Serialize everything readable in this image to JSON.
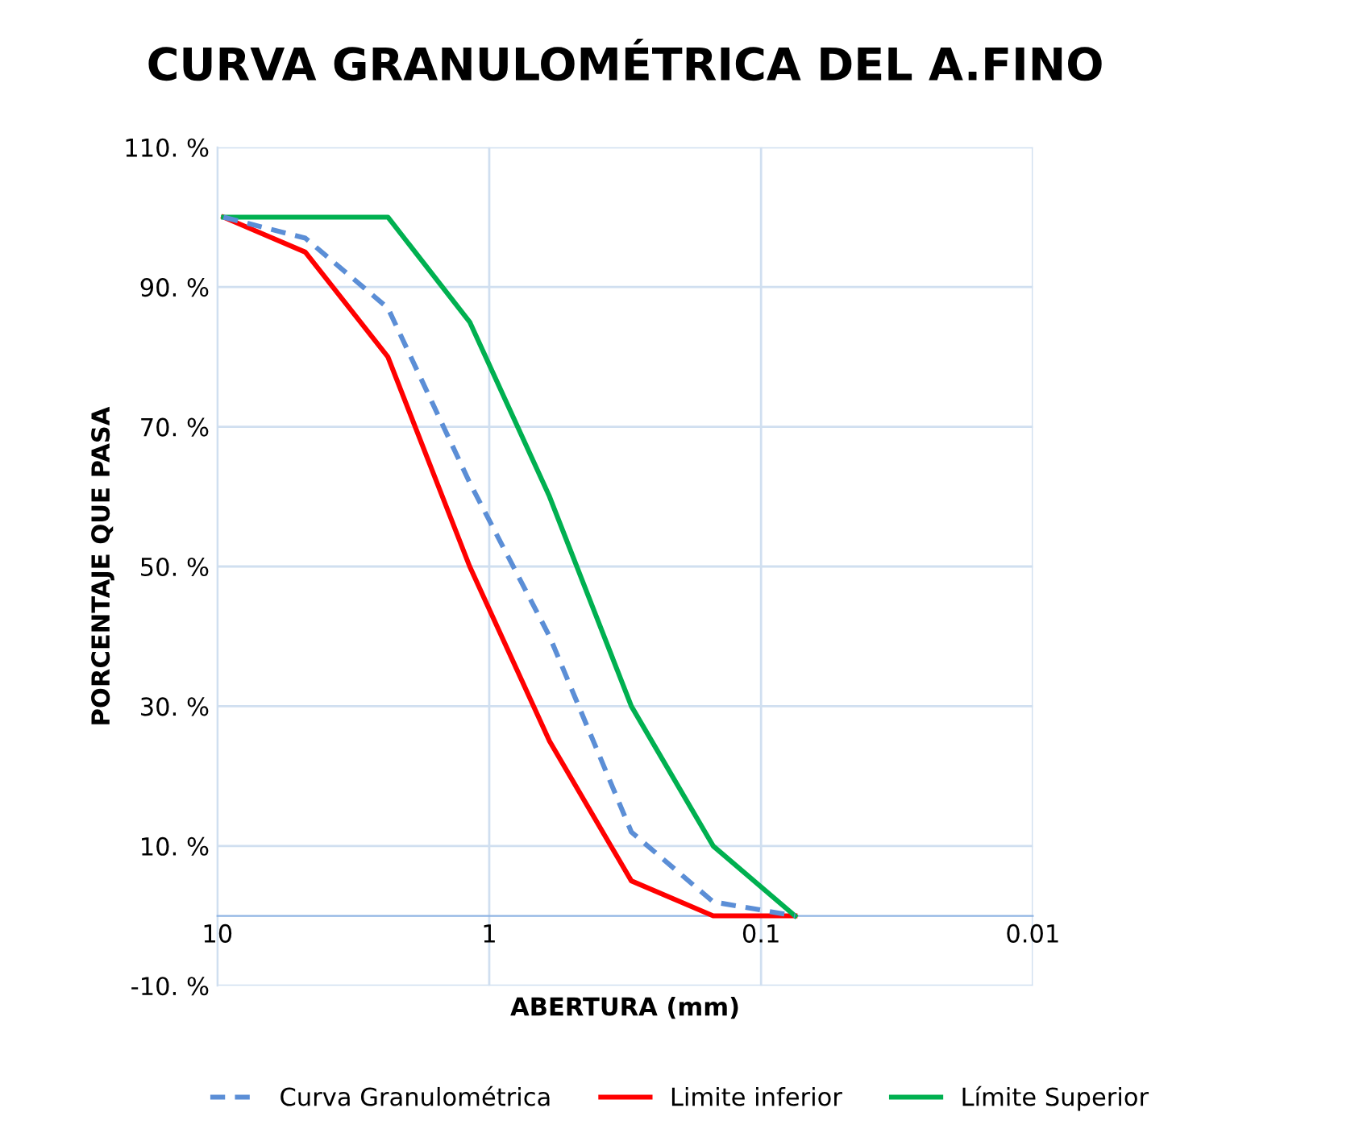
{
  "chart_data": {
    "type": "line",
    "title": "CURVA GRANULOMÉTRICA DEL A.FINO",
    "xlabel": "ABERTURA (mm)",
    "ylabel": "PORCENTAJE QUE PASA",
    "log": "x",
    "x": [
      9.5,
      4.75,
      2.36,
      1.18,
      0.6,
      0.3,
      0.15,
      0.075
    ],
    "xlim": [
      10,
      0.01
    ],
    "xticks": [
      10,
      1,
      0.1,
      0.01
    ],
    "ylim": [
      -10,
      110
    ],
    "yticks": [
      {
        "value": -10,
        "label": "-10. %"
      },
      {
        "value": 10,
        "label": "10. %"
      },
      {
        "value": 30,
        "label": "30. %"
      },
      {
        "value": 50,
        "label": "50. %"
      },
      {
        "value": 70,
        "label": "70. %"
      },
      {
        "value": 90,
        "label": "90. %"
      },
      {
        "value": 110,
        "label": "110. %"
      }
    ],
    "grid": true,
    "legend": "bottom",
    "marker": "none",
    "series": [
      {
        "name": "Curva Granulométrica",
        "color": "#5b8ed6",
        "line_style": "dashed",
        "values": [
          100,
          97,
          87,
          62,
          40,
          12,
          2,
          0
        ]
      },
      {
        "name": "Limite inferior",
        "color": "#ff0000",
        "line_style": "solid",
        "values": [
          100,
          95,
          80,
          50,
          25,
          5,
          0,
          0
        ]
      },
      {
        "name": "Límite Superior",
        "color": "#00b050",
        "line_style": "solid",
        "values": [
          100,
          100,
          100,
          85,
          60,
          30,
          10,
          0
        ]
      }
    ]
  }
}
